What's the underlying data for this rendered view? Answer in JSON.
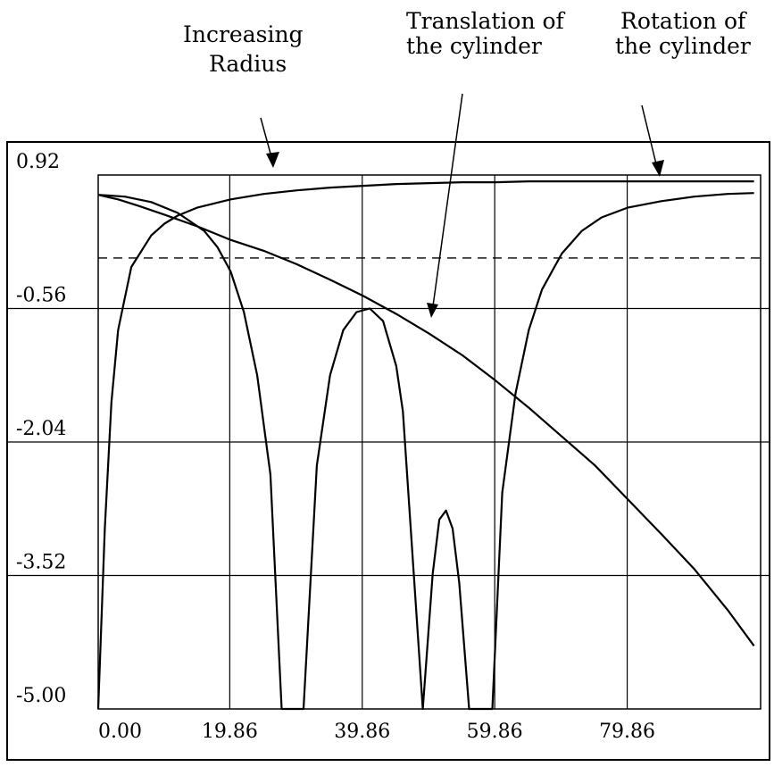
{
  "chart_data": {
    "type": "line",
    "title": "",
    "xlabel": "",
    "ylabel": "",
    "xlim": [
      0,
      100
    ],
    "ylim": [
      -5.0,
      0.92
    ],
    "grid": true,
    "x_tick_labels": [
      "0.00",
      "19.86",
      "39.86",
      "59.86",
      "79.86"
    ],
    "y_tick_labels": [
      "0.92",
      "-0.56",
      "-2.04",
      "-3.52",
      "-5.00"
    ],
    "reference_line": {
      "y": 0.0,
      "style": "dashed"
    },
    "annotations": [
      {
        "lines": [
          "Increasing",
          "Radius"
        ]
      },
      {
        "lines": [
          "Translation of",
          "the cylinder"
        ]
      },
      {
        "lines": [
          "Rotation of",
          "the cylinder"
        ]
      }
    ],
    "series": [
      {
        "x": [
          0,
          1,
          2,
          3,
          5,
          8,
          10,
          12,
          15,
          20,
          25,
          30,
          35,
          40,
          45,
          50,
          55,
          60,
          65,
          70,
          75,
          80,
          85,
          90,
          95,
          99
        ],
        "y": [
          -5.0,
          -3.0,
          -1.6,
          -0.8,
          -0.1,
          0.25,
          0.38,
          0.47,
          0.56,
          0.65,
          0.71,
          0.75,
          0.78,
          0.8,
          0.82,
          0.83,
          0.84,
          0.84,
          0.85,
          0.85,
          0.85,
          0.85,
          0.85,
          0.85,
          0.85,
          0.85
        ]
      },
      {
        "x": [
          0,
          3,
          6,
          10,
          15,
          20,
          25,
          30,
          35,
          40,
          45,
          50,
          55,
          60,
          65,
          70,
          75,
          80,
          85,
          90,
          95,
          99
        ],
        "y": [
          0.7,
          0.65,
          0.58,
          0.48,
          0.35,
          0.2,
          0.08,
          -0.07,
          -0.24,
          -0.42,
          -0.62,
          -0.84,
          -1.08,
          -1.36,
          -1.66,
          -1.98,
          -2.3,
          -2.68,
          -3.06,
          -3.45,
          -3.9,
          -4.3
        ]
      },
      {
        "x": [
          0,
          4,
          8,
          12,
          16,
          18,
          20,
          22,
          24,
          26,
          27.7,
          31,
          33,
          35,
          37,
          39,
          41,
          43,
          45,
          46,
          49,
          50.5,
          51.5,
          52.5,
          53.5,
          54.5,
          56,
          59.5,
          61,
          63,
          65,
          67,
          70,
          73,
          76,
          80,
          85,
          90,
          95,
          99
        ],
        "y": [
          0.7,
          0.68,
          0.62,
          0.5,
          0.3,
          0.12,
          -0.15,
          -0.6,
          -1.3,
          -2.4,
          -5.0,
          -5.0,
          -2.3,
          -1.3,
          -0.8,
          -0.6,
          -0.56,
          -0.7,
          -1.2,
          -1.7,
          -5.0,
          -3.5,
          -2.9,
          -2.8,
          -3.0,
          -3.6,
          -5.0,
          -5.0,
          -2.6,
          -1.5,
          -0.8,
          -0.35,
          0.05,
          0.3,
          0.45,
          0.56,
          0.63,
          0.68,
          0.71,
          0.72
        ]
      }
    ]
  }
}
